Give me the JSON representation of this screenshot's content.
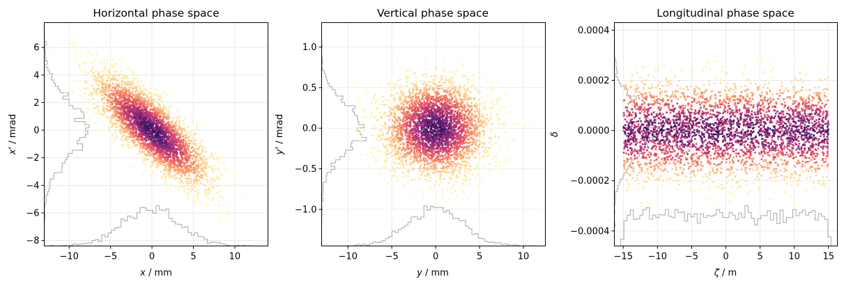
{
  "chart_data": [
    {
      "type": "heatmap",
      "title": "Horizontal phase space",
      "xlabel": "x / mm",
      "xlabel_var": "x",
      "xlabel_unit": " / mm",
      "ylabel": "x' / mrad",
      "ylabel_var": "x'",
      "ylabel_unit": " / mrad",
      "xlim": [
        -13,
        14
      ],
      "ylim": [
        -8.4,
        7.8
      ],
      "xticks": [
        -10,
        -5,
        0,
        5,
        10
      ],
      "xtick_labels": [
        "−10",
        "−5",
        "0",
        "5",
        "10"
      ],
      "yticks": [
        -8,
        -6,
        -4,
        -2,
        0,
        2,
        4,
        6
      ],
      "ytick_labels": [
        "−8",
        "−6",
        "−4",
        "−2",
        "0",
        "2",
        "4",
        "6"
      ],
      "distribution": {
        "mean_x": 0,
        "sigma_x": 3.5,
        "mean_y": 0,
        "sigma_y": 2.0,
        "correlation": -0.8
      },
      "grid": true,
      "colormap": "magma_r",
      "histogram_color": "#a8a8a8"
    },
    {
      "type": "heatmap",
      "title": "Vertical phase space",
      "xlabel": "y / mm",
      "xlabel_var": "y",
      "xlabel_unit": " / mm",
      "ylabel": "y' / mrad",
      "ylabel_var": "y'",
      "ylabel_unit": " / mrad",
      "xlim": [
        -13,
        12.5
      ],
      "ylim": [
        -1.45,
        1.3
      ],
      "xticks": [
        -10,
        -5,
        0,
        5,
        10
      ],
      "xtick_labels": [
        "−10",
        "−5",
        "0",
        "5",
        "10"
      ],
      "yticks": [
        -1.0,
        -0.5,
        0.0,
        0.5,
        1.0
      ],
      "ytick_labels": [
        "−1.0",
        "−0.5",
        "0.0",
        "0.5",
        "1.0"
      ],
      "distribution": {
        "mean_x": 0,
        "sigma_x": 3.0,
        "mean_y": 0,
        "sigma_y": 0.3,
        "correlation": 0.0
      },
      "grid": true,
      "colormap": "magma_r",
      "histogram_color": "#a8a8a8"
    },
    {
      "type": "heatmap",
      "title": "Longitudinal phase space",
      "xlabel": "ζ / m",
      "xlabel_var": "ζ",
      "xlabel_unit": " / m",
      "ylabel": "δ",
      "ylabel_var": "δ",
      "ylabel_unit": "",
      "xlim": [
        -16.3,
        16.3
      ],
      "ylim": [
        -0.00046,
        0.00043
      ],
      "xticks": [
        -15,
        -10,
        -5,
        0,
        5,
        10,
        15
      ],
      "xtick_labels": [
        "−15",
        "−10",
        "−5",
        "0",
        "5",
        "10",
        "15"
      ],
      "yticks": [
        -0.0004,
        -0.0002,
        0.0,
        0.0002,
        0.0004
      ],
      "ytick_labels": [
        "−0.0004",
        "−0.0002",
        "0.0000",
        "0.0002",
        "0.0004"
      ],
      "distribution": {
        "x_uniform": [
          -15,
          15
        ],
        "mean_y": 0,
        "sigma_y": 0.0001
      },
      "grid": true,
      "colormap": "magma_r",
      "histogram_color": "#a8a8a8"
    }
  ]
}
